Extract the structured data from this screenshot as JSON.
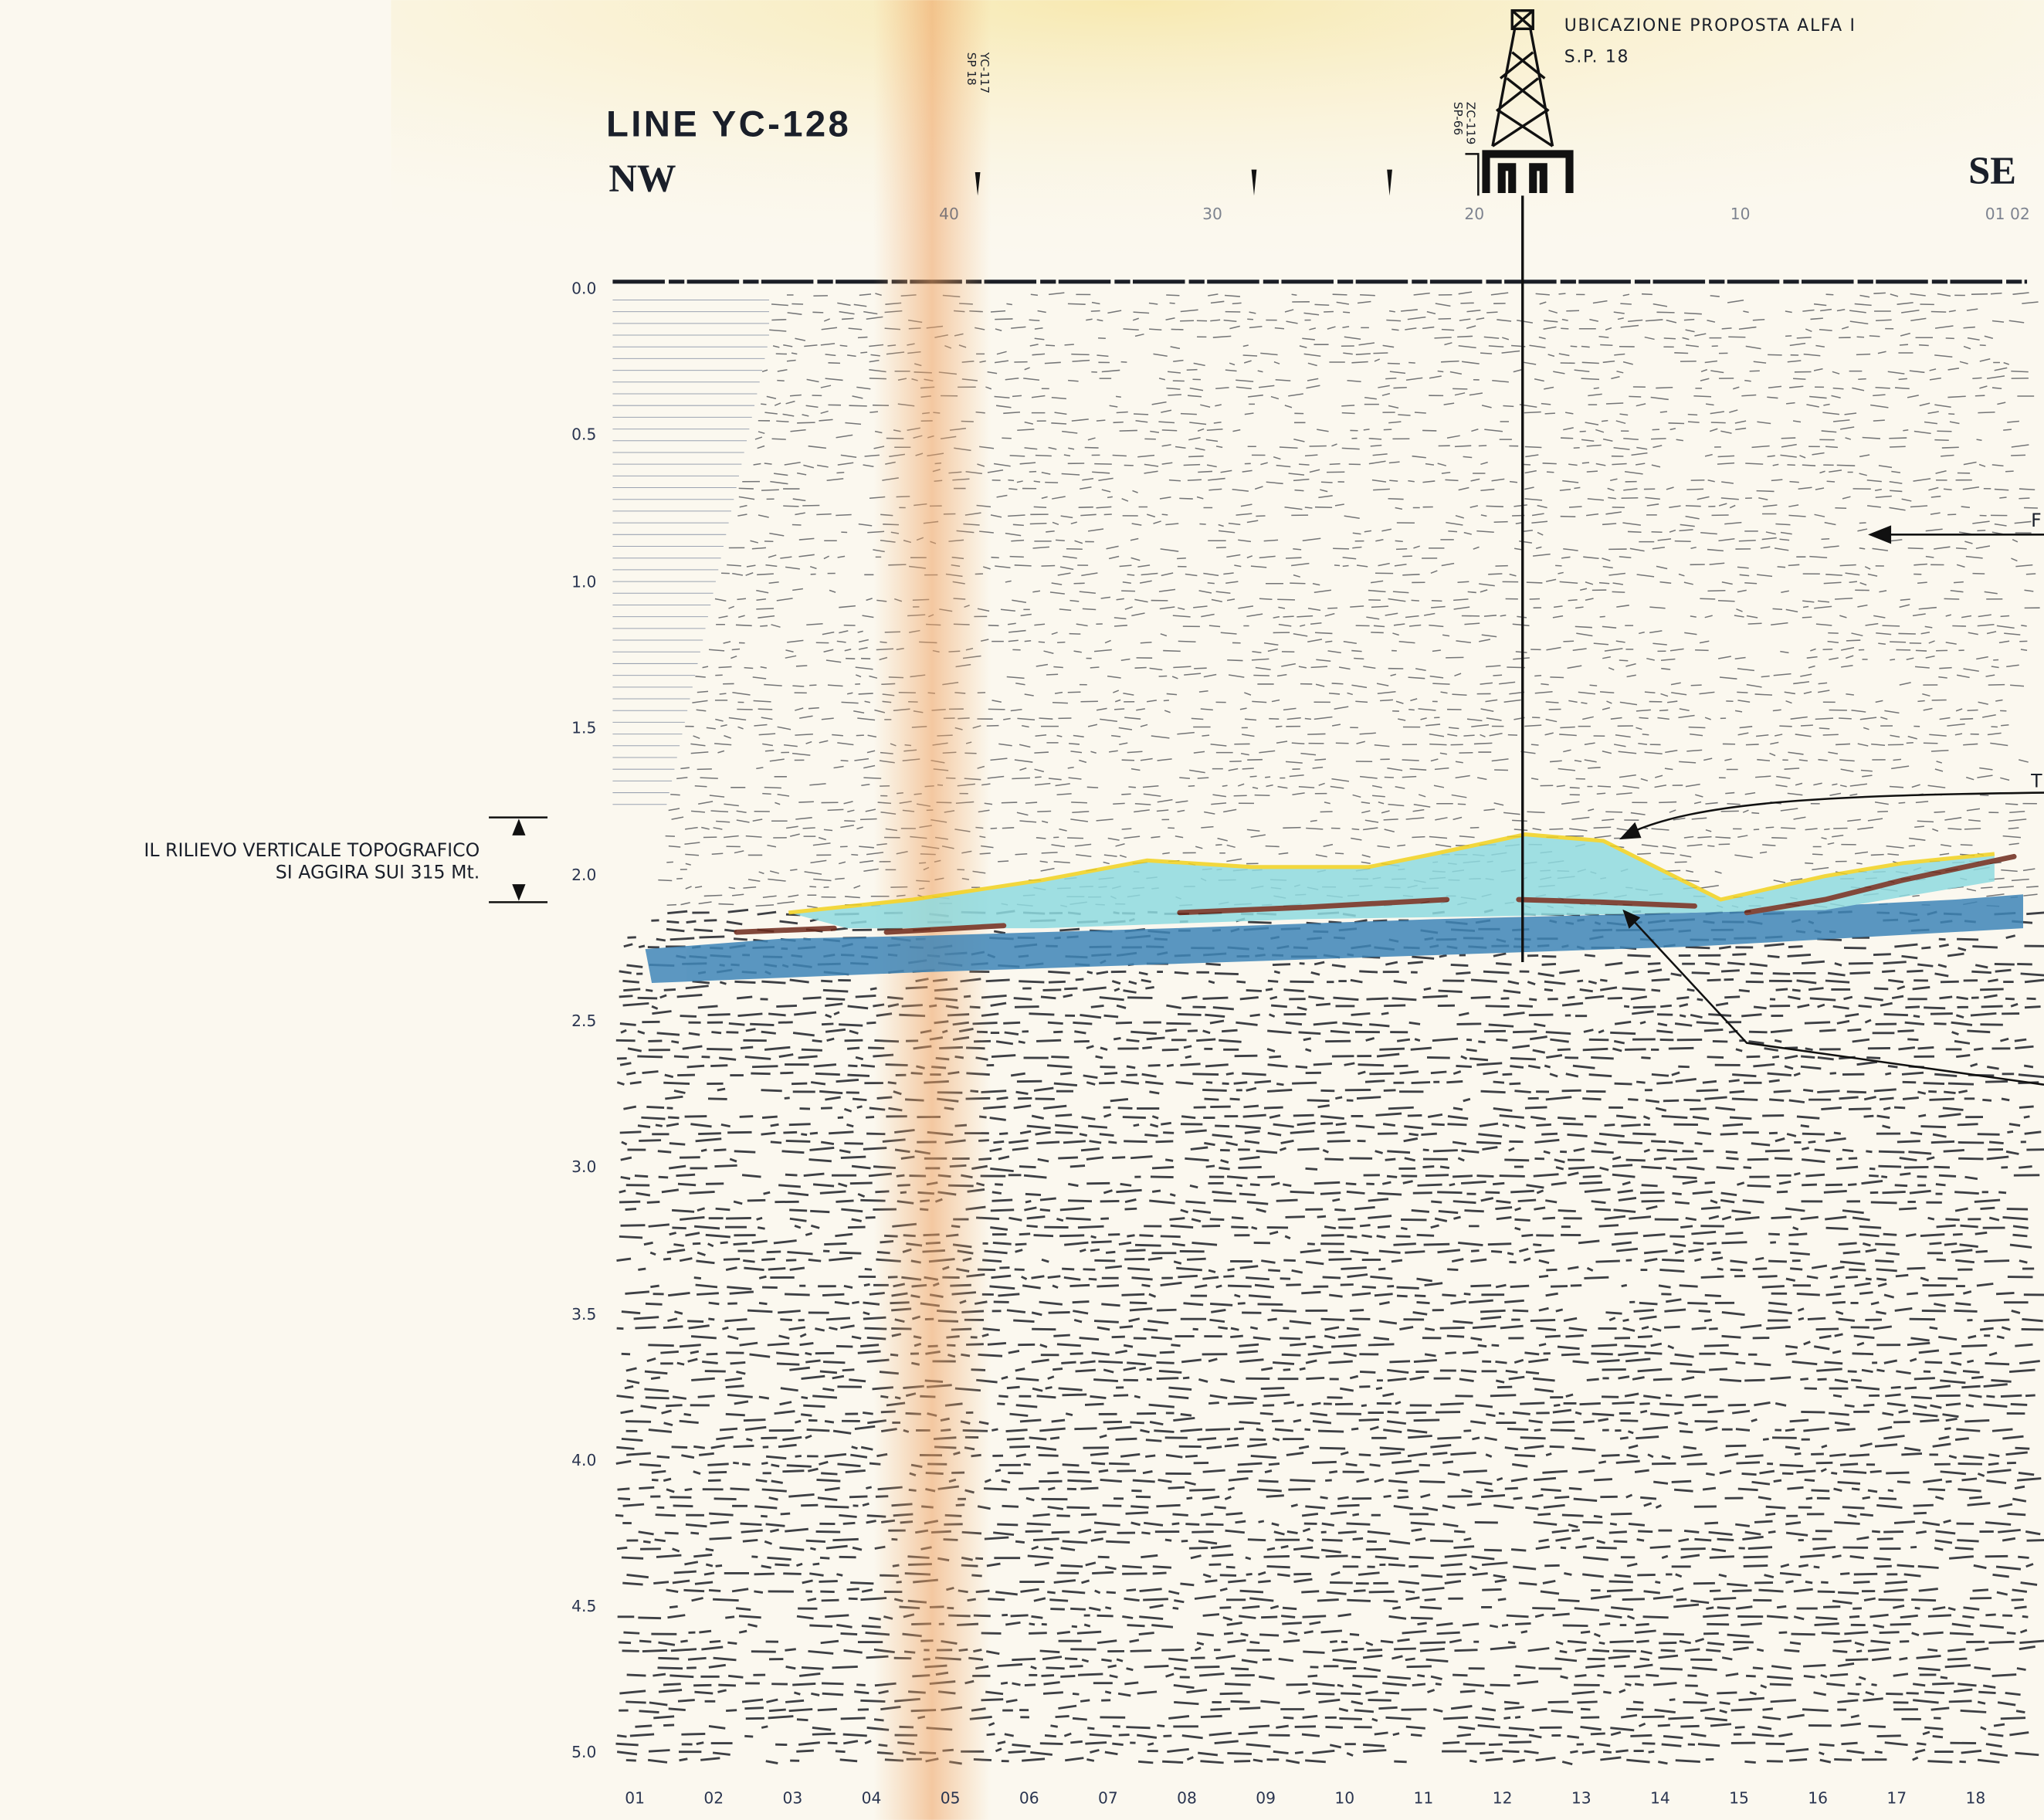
{
  "header": {
    "title": "LINE YC-128",
    "left_direction": "NW",
    "right_direction": "SE"
  },
  "well": {
    "label": "UBICAZIONE PROPOSTA ALFA I",
    "shot_point": "S.P. 18"
  },
  "crossings": [
    {
      "line": "YC-117",
      "shot_point": "SP 18"
    },
    {
      "line": "ZC-119",
      "shot_point": "SP-66"
    }
  ],
  "shot_points": [
    "40",
    "30",
    "20",
    "10",
    "01 02"
  ],
  "time_axis": [
    "0.0",
    "0.5",
    "1.0",
    "1.5",
    "2.0",
    "2.5",
    "3.0",
    "3.5",
    "4.0",
    "4.5",
    "5.0"
  ],
  "traces": [
    "01",
    "02",
    "03",
    "04",
    "05",
    "06",
    "07",
    "08",
    "09",
    "10",
    "11",
    "12",
    "13",
    "14",
    "15",
    "16",
    "17",
    "18"
  ],
  "annotation": [
    "IL RILIEVO VERTICALE TOPOGRAFICO",
    "SI AGGIRA SUI 315 Mt."
  ],
  "side_labels": [
    "F",
    "T"
  ]
}
